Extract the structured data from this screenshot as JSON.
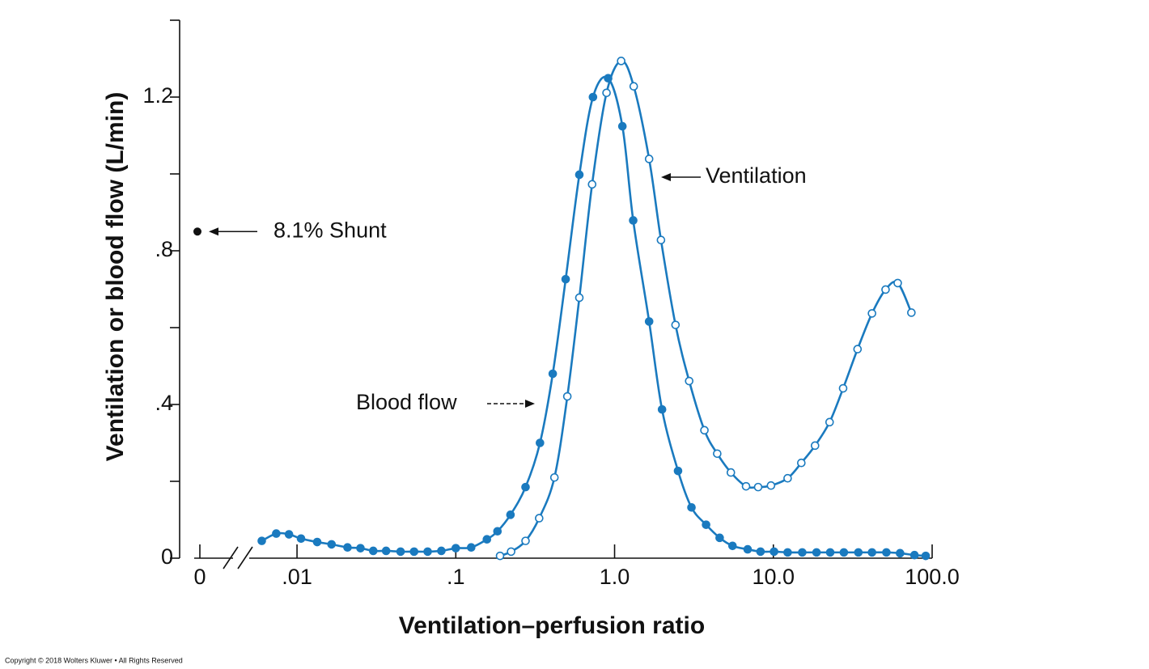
{
  "chart_data": {
    "type": "scatter",
    "x_label": "Ventilation–perfusion ratio",
    "y_label": "Ventilation or blood flow (L/min)",
    "x_log": true,
    "xlim": [
      0.005,
      100
    ],
    "xticks": [
      {
        "value": 0.01,
        "label": ".01"
      },
      {
        "value": 0.1,
        "label": ".1"
      },
      {
        "value": 1,
        "label": "1.0"
      },
      {
        "value": 10,
        "label": "10.0"
      },
      {
        "value": 100,
        "label": "100.0"
      }
    ],
    "zero_tick": 0,
    "ylim": [
      0,
      1.4
    ],
    "yticks": [
      0,
      {
        "value": 0.4,
        "label": ".4"
      },
      {
        "value": 0.8,
        "label": ".8"
      },
      {
        "value": 1.2,
        "label": "1.2"
      }
    ],
    "yminor": [
      0.2,
      0.6,
      1.0,
      1.4
    ],
    "shunt": {
      "value": 0.85,
      "label": "8.1% Shunt",
      "color": "#111111"
    },
    "series": [
      {
        "name": "Blood flow",
        "color": "#1a7abf",
        "marker": "filled",
        "x": [
          0.006,
          0.0074,
          0.0089,
          0.0106,
          0.0134,
          0.0165,
          0.0208,
          0.0251,
          0.0302,
          0.0364,
          0.0449,
          0.0546,
          0.0665,
          0.0811,
          0.1,
          0.125,
          0.157,
          0.183,
          0.221,
          0.275,
          0.339,
          0.408,
          0.492,
          0.6,
          0.731,
          0.911,
          1.12,
          1.31,
          1.65,
          1.99,
          2.51,
          3.05,
          3.77,
          4.59,
          5.53,
          6.89,
          8.3,
          10.1,
          12.3,
          15.2,
          18.7,
          22.8,
          27.8,
          34.3,
          41.8,
          51.5,
          62.8,
          77.4,
          91.1
        ],
        "values": [
          0.045,
          0.064,
          0.062,
          0.051,
          0.042,
          0.036,
          0.028,
          0.026,
          0.019,
          0.019,
          0.017,
          0.017,
          0.017,
          0.019,
          0.026,
          0.028,
          0.049,
          0.07,
          0.113,
          0.185,
          0.3,
          0.48,
          0.726,
          0.998,
          1.2,
          1.249,
          1.124,
          0.879,
          0.616,
          0.387,
          0.227,
          0.132,
          0.087,
          0.053,
          0.032,
          0.023,
          0.017,
          0.017,
          0.015,
          0.015,
          0.015,
          0.015,
          0.015,
          0.015,
          0.015,
          0.015,
          0.013,
          0.008,
          0.006
        ]
      },
      {
        "name": "Ventilation",
        "color": "#1a7abf",
        "marker": "open",
        "x": [
          0.19,
          0.223,
          0.275,
          0.335,
          0.418,
          0.504,
          0.6,
          0.722,
          0.89,
          1.1,
          1.32,
          1.65,
          1.96,
          2.42,
          2.95,
          3.68,
          4.43,
          5.4,
          6.73,
          8.02,
          9.66,
          12.3,
          15.0,
          18.3,
          22.6,
          27.5,
          33.9,
          41.8,
          50.9,
          60.7,
          74.0
        ],
        "values": [
          0.006,
          0.017,
          0.045,
          0.104,
          0.21,
          0.421,
          0.678,
          0.973,
          1.211,
          1.294,
          1.228,
          1.039,
          0.828,
          0.607,
          0.461,
          0.333,
          0.272,
          0.223,
          0.187,
          0.185,
          0.189,
          0.208,
          0.248,
          0.293,
          0.354,
          0.442,
          0.544,
          0.637,
          0.699,
          0.716,
          0.639
        ]
      }
    ]
  },
  "footer": "Copyright © 2018 Wolters Kluwer • All Rights Reserved"
}
